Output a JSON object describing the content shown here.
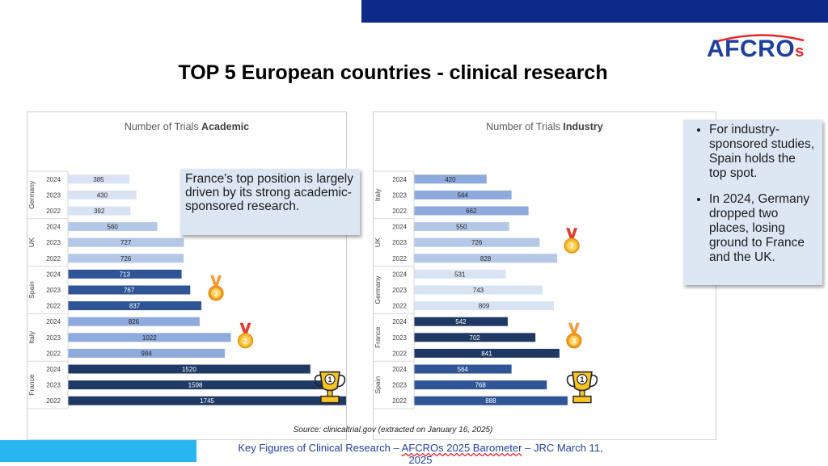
{
  "title": "TOP 5 European countries - clinical research",
  "logo": {
    "main": "AFCRO",
    "suffix": "s"
  },
  "source": "Source: clinicaltrial.gov (extracted on January 16, 2025)",
  "footer": {
    "before": "Key Figures of Clinical Research – ",
    "highlight": "AFCROs 2025 Barometer",
    "after": " – JRC March 11, 2025"
  },
  "callout_left": "France's top position is largely driven by its strong academic-sponsored research.",
  "callout_right": [
    "For industry-sponsored studies, Spain holds the top spot.",
    "In 2024, Germany dropped two places, losing ground to France and the UK."
  ],
  "chart_data": [
    {
      "type": "bar",
      "orientation": "horizontal",
      "title": "Number of Trials Academic",
      "title_prefix": "Number of Trials ",
      "title_bold": "Academic",
      "groups": [
        {
          "name": "Germany",
          "color": "#dae3f3",
          "items": [
            {
              "year": "2024",
              "value": 385
            },
            {
              "year": "2023",
              "value": 430
            },
            {
              "year": "2022",
              "value": 392
            }
          ]
        },
        {
          "name": "UK",
          "color": "#b4c7e7",
          "items": [
            {
              "year": "2024",
              "value": 560
            },
            {
              "year": "2023",
              "value": 727
            },
            {
              "year": "2022",
              "value": 726
            }
          ]
        },
        {
          "name": "Spain",
          "color": "#2f5597",
          "items": [
            {
              "year": "2024",
              "value": 713
            },
            {
              "year": "2023",
              "value": 767
            },
            {
              "year": "2022",
              "value": 837
            }
          ]
        },
        {
          "name": "Italy",
          "color": "#8faadc",
          "items": [
            {
              "year": "2024",
              "value": 826
            },
            {
              "year": "2023",
              "value": 1022
            },
            {
              "year": "2022",
              "value": 984
            }
          ]
        },
        {
          "name": "France",
          "color": "#203864",
          "items": [
            {
              "year": "2024",
              "value": 1520
            },
            {
              "year": "2023",
              "value": 1598
            },
            {
              "year": "2022",
              "value": 1745
            }
          ]
        }
      ],
      "medals": [
        {
          "group": "Spain",
          "rank": "3"
        },
        {
          "group": "Italy",
          "rank": "2"
        },
        {
          "group": "France",
          "rank": "1"
        }
      ]
    },
    {
      "type": "bar",
      "orientation": "horizontal",
      "title": "Number of Trials Industry",
      "title_prefix": "Number of Trials ",
      "title_bold": "Industry",
      "groups": [
        {
          "name": "Italy",
          "color": "#8faadc",
          "items": [
            {
              "year": "2024",
              "value": 420
            },
            {
              "year": "2023",
              "value": 564
            },
            {
              "year": "2022",
              "value": 662
            }
          ]
        },
        {
          "name": "UK",
          "color": "#b4c7e7",
          "items": [
            {
              "year": "2024",
              "value": 550
            },
            {
              "year": "2023",
              "value": 726
            },
            {
              "year": "2022",
              "value": 828
            }
          ]
        },
        {
          "name": "Germany",
          "color": "#dae3f3",
          "items": [
            {
              "year": "2024",
              "value": 531
            },
            {
              "year": "2023",
              "value": 743
            },
            {
              "year": "2022",
              "value": 809
            }
          ]
        },
        {
          "name": "France",
          "color": "#203864",
          "items": [
            {
              "year": "2024",
              "value": 542
            },
            {
              "year": "2023",
              "value": 702
            },
            {
              "year": "2022",
              "value": 841
            }
          ]
        },
        {
          "name": "Spain",
          "color": "#2f5597",
          "items": [
            {
              "year": "2024",
              "value": 564
            },
            {
              "year": "2023",
              "value": 768
            },
            {
              "year": "2022",
              "value": 888
            }
          ]
        }
      ],
      "medals": [
        {
          "group": "UK",
          "rank": "2"
        },
        {
          "group": "France",
          "rank": "3"
        },
        {
          "group": "Spain",
          "rank": "1"
        }
      ]
    }
  ]
}
